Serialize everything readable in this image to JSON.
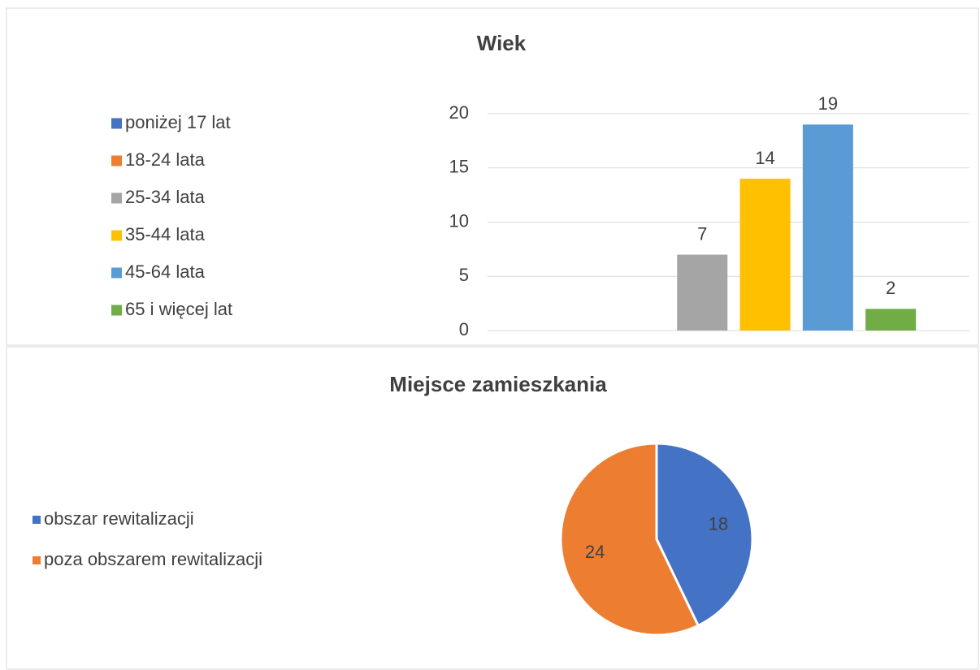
{
  "chart_data": [
    {
      "type": "bar",
      "title": "Wiek",
      "categories": [
        "poniżej 17 lat",
        "18-24 lata",
        "25-34 lata",
        "35-44 lata",
        "45-64 lata",
        "65 i więcej lat"
      ],
      "values": [
        null,
        null,
        7,
        14,
        19,
        2
      ],
      "colors": [
        "#4472c4",
        "#ed7d31",
        "#a5a5a5",
        "#ffc000",
        "#5b9bd5",
        "#70ad47"
      ],
      "ylim": [
        0,
        20
      ],
      "yticks": [
        0,
        5,
        10,
        15,
        20
      ],
      "grid": true,
      "legend": "left"
    },
    {
      "type": "pie",
      "title": "Miejsce zamieszkania",
      "categories": [
        "obszar rewitalizacji",
        "poza obszarem rewitalizacji"
      ],
      "values": [
        18,
        24
      ],
      "colors": [
        "#4472c4",
        "#ed7d31"
      ],
      "legend": "left"
    }
  ]
}
